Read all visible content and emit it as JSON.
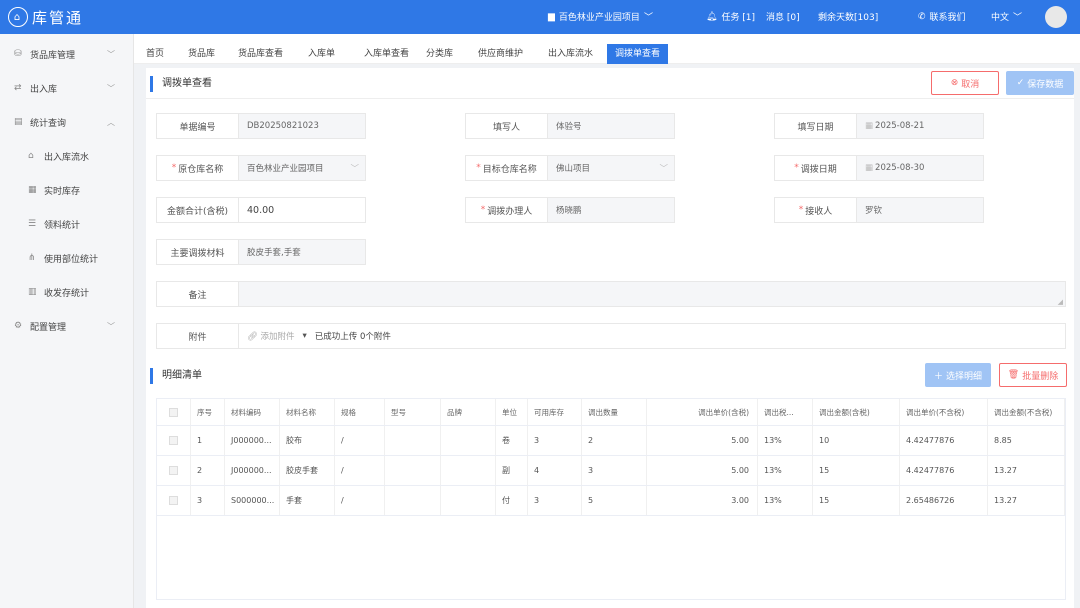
{
  "header": {
    "logo": "库管通",
    "project": "百色林业产业园项目",
    "tasks": "任务 [1]",
    "messages": "消息 [0]",
    "days": "剩余天数[103]",
    "contact": "联系我们",
    "lang": "中文"
  },
  "sidebar": {
    "items": [
      {
        "label": "货品库管理",
        "icon": "box-icon"
      },
      {
        "label": "出入库",
        "icon": "transfer-icon"
      },
      {
        "label": "统计查询",
        "icon": "chart-icon"
      },
      {
        "label": "出入库流水",
        "icon": "home-icon",
        "sub": true
      },
      {
        "label": "实时库存",
        "icon": "stock-icon",
        "sub": true
      },
      {
        "label": "领料统计",
        "icon": "list-icon",
        "sub": true
      },
      {
        "label": "使用部位统计",
        "icon": "tree-icon",
        "sub": true
      },
      {
        "label": "收发存统计",
        "icon": "report-icon",
        "sub": true
      },
      {
        "label": "配置管理",
        "icon": "settings-icon"
      }
    ]
  },
  "tabs": [
    "首页",
    "货品库",
    "货品库查看",
    "入库单",
    "入库单查看",
    "分类库",
    "供应商维护",
    "出入库流水",
    "调拨单查看"
  ],
  "page": {
    "title": "调拨单查看",
    "cancel": "取消",
    "save": "保存数据"
  },
  "form": {
    "doc_no_label": "单据编号",
    "doc_no": "DB20250821023",
    "writer_label": "填写人",
    "writer": "体验号",
    "date_label": "填写日期",
    "date": "2025-08-21",
    "src_label": "原仓库名称",
    "src": "百色林业产业园项目",
    "dst_label": "目标仓库名称",
    "dst": "佛山项目",
    "tdate_label": "调拨日期",
    "tdate": "2025-08-30",
    "amount_label": "金额合计(含税)",
    "amount": "40.00",
    "handler_label": "调拨办理人",
    "handler": "杨晓鹏",
    "receiver_label": "接收人",
    "receiver": "罗钦",
    "material_label": "主要调拨材料",
    "material": "胶皮手套,手套",
    "remark_label": "备注",
    "remark": "",
    "attach_label": "附件",
    "attach_add": "添加附件",
    "attach_status": "已成功上传 0个附件"
  },
  "detail": {
    "title": "明细清单",
    "select": "选择明细",
    "batch_delete": "批量删除",
    "columns": [
      "序号",
      "材料编码",
      "材料名称",
      "规格",
      "型号",
      "品牌",
      "单位",
      "可用库存",
      "调出数量",
      "调出单价(含税)",
      "调出税...",
      "调出金额(含税)",
      "调出单价(不含税)",
      "调出金额(不含税)"
    ],
    "rows": [
      [
        "1",
        "J000000...",
        "胶布",
        "/",
        "",
        "",
        "卷",
        "3",
        "2",
        "5.00",
        "13%",
        "10",
        "4.42477876",
        "8.85"
      ],
      [
        "2",
        "J000000...",
        "胶皮手套",
        "/",
        "",
        "",
        "副",
        "4",
        "3",
        "5.00",
        "13%",
        "15",
        "4.42477876",
        "13.27"
      ],
      [
        "3",
        "S000000...",
        "手套",
        "/",
        "",
        "",
        "付",
        "3",
        "5",
        "3.00",
        "13%",
        "15",
        "2.65486726",
        "13.27"
      ]
    ]
  }
}
